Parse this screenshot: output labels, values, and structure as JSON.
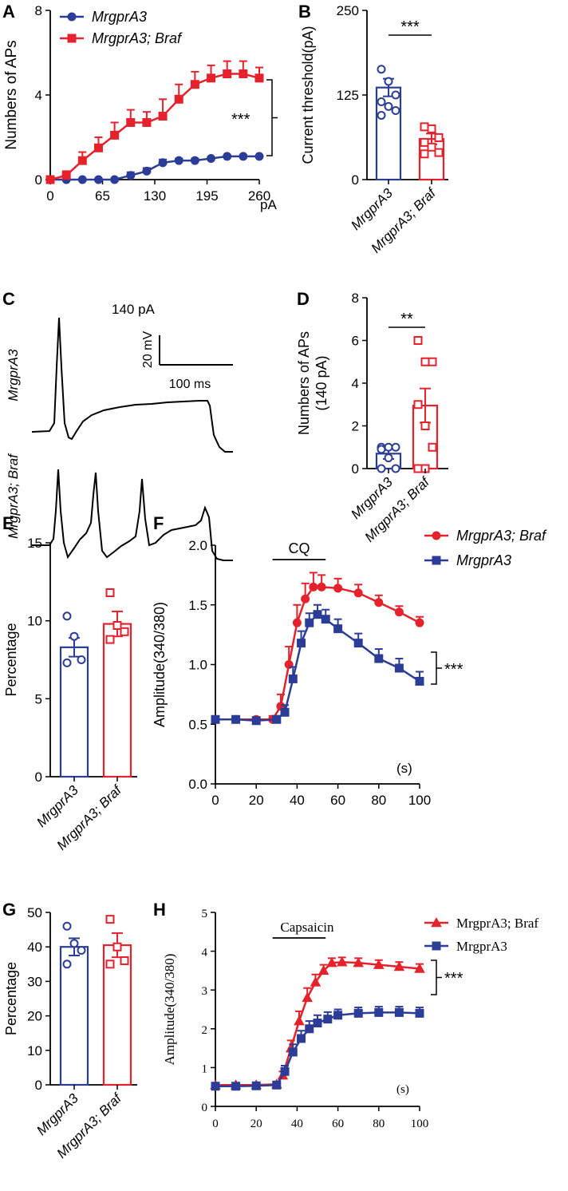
{
  "panels": {
    "A": "A",
    "B": "B",
    "C": "C",
    "D": "D",
    "E": "E",
    "F": "F",
    "G": "G",
    "H": "H"
  },
  "colors": {
    "blue": "#2b3d97",
    "red": "#e5222b",
    "black": "#000000"
  },
  "chart_data": [
    {
      "panel": "A",
      "type": "line",
      "ylabel": "Numbers of APs",
      "x_unit": "pA",
      "xticks": [
        "0",
        "65",
        "130",
        "195",
        "260"
      ],
      "yticks": [
        "0",
        "4",
        "8"
      ],
      "xlim": [
        0,
        260
      ],
      "ylim": [
        0,
        8
      ],
      "x": [
        0,
        20,
        40,
        60,
        80,
        100,
        120,
        140,
        160,
        180,
        200,
        220,
        240,
        260
      ],
      "series": [
        {
          "name": "MrgprA3",
          "color": "#2b3d97",
          "marker": "circle",
          "values": [
            0,
            0,
            0,
            0,
            0,
            0.2,
            0.4,
            0.8,
            0.9,
            0.9,
            1.0,
            1.1,
            1.1,
            1.1
          ],
          "errors": [
            0,
            0,
            0,
            0,
            0,
            0.15,
            0.15,
            0.15,
            0.1,
            0.1,
            0.05,
            0.05,
            0.05,
            0.05
          ]
        },
        {
          "name": "MrgprA3; Braf",
          "color": "#e5222b",
          "marker": "square",
          "values": [
            0,
            0.2,
            0.9,
            1.5,
            2.1,
            2.7,
            2.7,
            3.0,
            3.8,
            4.5,
            4.8,
            5.0,
            5.0,
            4.8
          ],
          "errors": [
            0,
            0.2,
            0.4,
            0.5,
            0.6,
            0.6,
            0.5,
            0.8,
            0.7,
            0.6,
            0.6,
            0.6,
            0.6,
            0.5
          ]
        }
      ],
      "significance": "***"
    },
    {
      "panel": "B",
      "type": "bar",
      "ylabel": "Current threshold(pA)",
      "categories": [
        "MrgprA3",
        "MrgprA3; Braf"
      ],
      "values": [
        136,
        60
      ],
      "errors": [
        13,
        8
      ],
      "points": [
        [
          163,
          145,
          125,
          115,
          108,
          102,
          95
        ],
        [
          78,
          75,
          62,
          55,
          48,
          40,
          38
        ]
      ],
      "yticks": [
        "0",
        "125",
        "250"
      ],
      "ylim": [
        0,
        250
      ],
      "significance": "***"
    },
    {
      "panel": "C",
      "type": "trace",
      "stimulus": "140 pA",
      "scale_v": "20 mV",
      "scale_t": "100 ms",
      "traces": [
        "MrgprA3",
        "MrgprA3; Braf"
      ]
    },
    {
      "panel": "D",
      "type": "bar",
      "ylabel_line1": "Numbers of APs",
      "ylabel_line2": "(140 pA)",
      "categories": [
        "MrgprA3",
        "MrgprA3; Braf"
      ],
      "values": [
        0.7,
        2.95
      ],
      "errors": [
        0.25,
        0.8
      ],
      "points": [
        [
          1,
          1,
          1,
          0.9,
          0.5,
          0,
          0
        ],
        [
          6,
          5,
          5,
          3,
          2,
          1,
          0,
          0
        ]
      ],
      "yticks": [
        "0",
        "2",
        "4",
        "6",
        "8"
      ],
      "ylim": [
        0,
        8
      ],
      "significance": "**"
    },
    {
      "panel": "E",
      "type": "bar",
      "ylabel": "Percentage",
      "categories": [
        "MrgprA3",
        "MrgprA3; Braf"
      ],
      "values": [
        8.3,
        9.8
      ],
      "errors": [
        0.6,
        0.8
      ],
      "points": [
        [
          10.3,
          9.0,
          7.5,
          7.3
        ],
        [
          11.8,
          9.7,
          9.3,
          8.8
        ]
      ],
      "yticks": [
        "0",
        "5",
        "10",
        "15"
      ],
      "ylim": [
        0,
        15
      ]
    },
    {
      "panel": "F",
      "type": "line",
      "ylabel": "Amplitude(340/380)",
      "x_unit": "(s)",
      "stimulus": "CQ",
      "stimulus_range": [
        28,
        54
      ],
      "xticks": [
        "0",
        "20",
        "40",
        "60",
        "80",
        "100"
      ],
      "yticks": [
        "0.0",
        "0.5",
        "1.0",
        "1.5",
        "2.0"
      ],
      "xlim": [
        0,
        100
      ],
      "ylim": [
        0,
        2
      ],
      "series": [
        {
          "name": "MrgprA3; Braf",
          "color": "#e5222b",
          "marker": "circle",
          "x": [
            0,
            10,
            20,
            28,
            32,
            36,
            40,
            44,
            48,
            52,
            60,
            70,
            80,
            90,
            100
          ],
          "values": [
            0.54,
            0.54,
            0.54,
            0.54,
            0.65,
            1.0,
            1.35,
            1.55,
            1.65,
            1.65,
            1.64,
            1.6,
            1.52,
            1.44,
            1.35
          ],
          "errors": [
            0.02,
            0.02,
            0.02,
            0.03,
            0.1,
            0.15,
            0.15,
            0.13,
            0.12,
            0.1,
            0.08,
            0.07,
            0.06,
            0.05,
            0.05
          ]
        },
        {
          "name": "MrgprA3",
          "color": "#2b3d97",
          "marker": "square",
          "x": [
            0,
            10,
            20,
            30,
            34,
            38,
            42,
            46,
            50,
            54,
            60,
            70,
            80,
            90,
            100
          ],
          "values": [
            0.54,
            0.54,
            0.53,
            0.54,
            0.6,
            0.88,
            1.18,
            1.35,
            1.42,
            1.38,
            1.3,
            1.18,
            1.05,
            0.97,
            0.86
          ],
          "errors": [
            0.02,
            0.02,
            0.02,
            0.03,
            0.06,
            0.1,
            0.1,
            0.08,
            0.08,
            0.08,
            0.08,
            0.08,
            0.08,
            0.08,
            0.08
          ]
        }
      ],
      "significance": "***"
    },
    {
      "panel": "G",
      "type": "bar",
      "ylabel": "Percentage",
      "categories": [
        "MrgprA3",
        "MrgprA3; Braf"
      ],
      "values": [
        40,
        40.5
      ],
      "errors": [
        2.5,
        3.5
      ],
      "points": [
        [
          46,
          41,
          39,
          35
        ],
        [
          48,
          40,
          36,
          35
        ]
      ],
      "yticks": [
        "0",
        "10",
        "20",
        "30",
        "40",
        "50"
      ],
      "ylim": [
        0,
        50
      ]
    },
    {
      "panel": "H",
      "type": "line",
      "ylabel": "Amplitude(340/380)",
      "x_unit": "(s)",
      "stimulus": "Capsaicin",
      "stimulus_range": [
        28,
        54
      ],
      "xticks": [
        "0",
        "20",
        "40",
        "60",
        "80",
        "100"
      ],
      "yticks": [
        "0",
        "1",
        "2",
        "3",
        "4",
        "5"
      ],
      "xlim": [
        0,
        100
      ],
      "ylim": [
        0,
        5
      ],
      "series": [
        {
          "name": "MrgprA3; Braf",
          "color": "#e5222b",
          "marker": "triangle",
          "x": [
            0,
            10,
            20,
            30,
            33,
            37,
            41,
            45,
            49,
            53,
            57,
            62,
            70,
            80,
            90,
            100
          ],
          "values": [
            0.55,
            0.55,
            0.55,
            0.57,
            0.8,
            1.5,
            2.2,
            2.8,
            3.2,
            3.5,
            3.7,
            3.72,
            3.7,
            3.65,
            3.6,
            3.55
          ],
          "errors": [
            0.05,
            0.05,
            0.05,
            0.05,
            0.1,
            0.2,
            0.25,
            0.25,
            0.2,
            0.15,
            0.12,
            0.12,
            0.12,
            0.12,
            0.12,
            0.12
          ]
        },
        {
          "name": "MrgprA3",
          "color": "#2b3d97",
          "marker": "square",
          "x": [
            0,
            10,
            20,
            30,
            34,
            38,
            42,
            46,
            50,
            55,
            60,
            70,
            80,
            90,
            100
          ],
          "values": [
            0.52,
            0.52,
            0.53,
            0.55,
            0.9,
            1.4,
            1.75,
            2.0,
            2.15,
            2.25,
            2.35,
            2.4,
            2.42,
            2.42,
            2.4
          ],
          "errors": [
            0.05,
            0.05,
            0.05,
            0.05,
            0.15,
            0.2,
            0.2,
            0.2,
            0.2,
            0.18,
            0.15,
            0.15,
            0.15,
            0.15,
            0.15
          ]
        }
      ],
      "significance": "***"
    }
  ]
}
